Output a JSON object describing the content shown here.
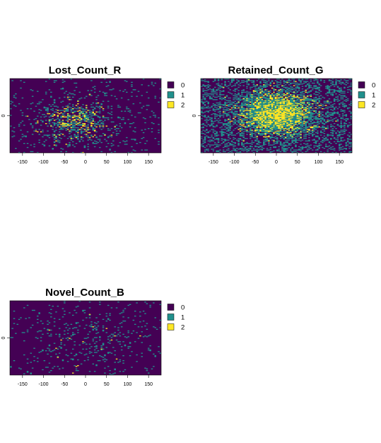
{
  "chart_data": [
    {
      "type": "heatmap",
      "title": "Lost_Count_R",
      "xlabel": "",
      "ylabel": "",
      "xlim": [
        -180,
        180
      ],
      "ylim": [
        -90,
        90
      ],
      "x_ticks": [
        -150,
        -100,
        -50,
        0,
        50,
        100,
        150
      ],
      "x_tick_labels": [
        "-150",
        "-100",
        "-50",
        "0",
        "50",
        "100",
        "150"
      ],
      "y_ticks": [
        0
      ],
      "y_tick_labels": [
        "0"
      ],
      "legend": {
        "position": "right",
        "entries": [
          {
            "label": "0",
            "color": "#440154"
          },
          {
            "label": "1",
            "color": "#21908C"
          },
          {
            "label": "2",
            "color": "#FDE725"
          }
        ]
      },
      "grid": false,
      "cell_size_deg": [
        4,
        2
      ],
      "value_levels": [
        0,
        1,
        2
      ],
      "model": {
        "cx": -20,
        "cy": -15,
        "sx": 75,
        "sy": 45,
        "p1": 0.32,
        "p2": 0.22,
        "base1": 0.04,
        "seed": 11
      }
    },
    {
      "type": "heatmap",
      "title": "Retained_Count_G",
      "xlabel": "",
      "ylabel": "",
      "xlim": [
        -180,
        180
      ],
      "ylim": [
        -90,
        90
      ],
      "x_ticks": [
        -150,
        -100,
        -50,
        0,
        50,
        100,
        150
      ],
      "x_tick_labels": [
        "-150",
        "-100",
        "-50",
        "0",
        "50",
        "100",
        "150"
      ],
      "y_ticks": [
        0
      ],
      "y_tick_labels": [
        "0"
      ],
      "legend": {
        "position": "right",
        "entries": [
          {
            "label": "0",
            "color": "#440154"
          },
          {
            "label": "1",
            "color": "#21908C"
          },
          {
            "label": "2",
            "color": "#FDE725"
          }
        ]
      },
      "grid": false,
      "cell_size_deg": [
        4,
        2
      ],
      "value_levels": [
        0,
        1,
        2
      ],
      "model": {
        "cx": 0,
        "cy": 5,
        "sx": 90,
        "sy": 55,
        "p1": 0.55,
        "p2": 0.75,
        "base1": 0.25,
        "seed": 23
      }
    },
    {
      "type": "heatmap",
      "title": "Novel_Count_B",
      "xlabel": "",
      "ylabel": "",
      "xlim": [
        -180,
        180
      ],
      "ylim": [
        -90,
        90
      ],
      "x_ticks": [
        -150,
        -100,
        -50,
        0,
        50,
        100,
        150
      ],
      "x_tick_labels": [
        "-150",
        "-100",
        "-50",
        "0",
        "50",
        "100",
        "150"
      ],
      "y_ticks": [
        0
      ],
      "y_tick_labels": [
        "0"
      ],
      "legend": {
        "position": "right",
        "entries": [
          {
            "label": "0",
            "color": "#440154"
          },
          {
            "label": "1",
            "color": "#21908C"
          },
          {
            "label": "2",
            "color": "#FDE725"
          }
        ]
      },
      "grid": false,
      "cell_size_deg": [
        4,
        2
      ],
      "value_levels": [
        0,
        1,
        2
      ],
      "model": {
        "cx": 0,
        "cy": 0,
        "sx": 120,
        "sy": 70,
        "p1": 0.09,
        "p2": 0.012,
        "base1": 0.02,
        "seed": 37
      }
    }
  ]
}
